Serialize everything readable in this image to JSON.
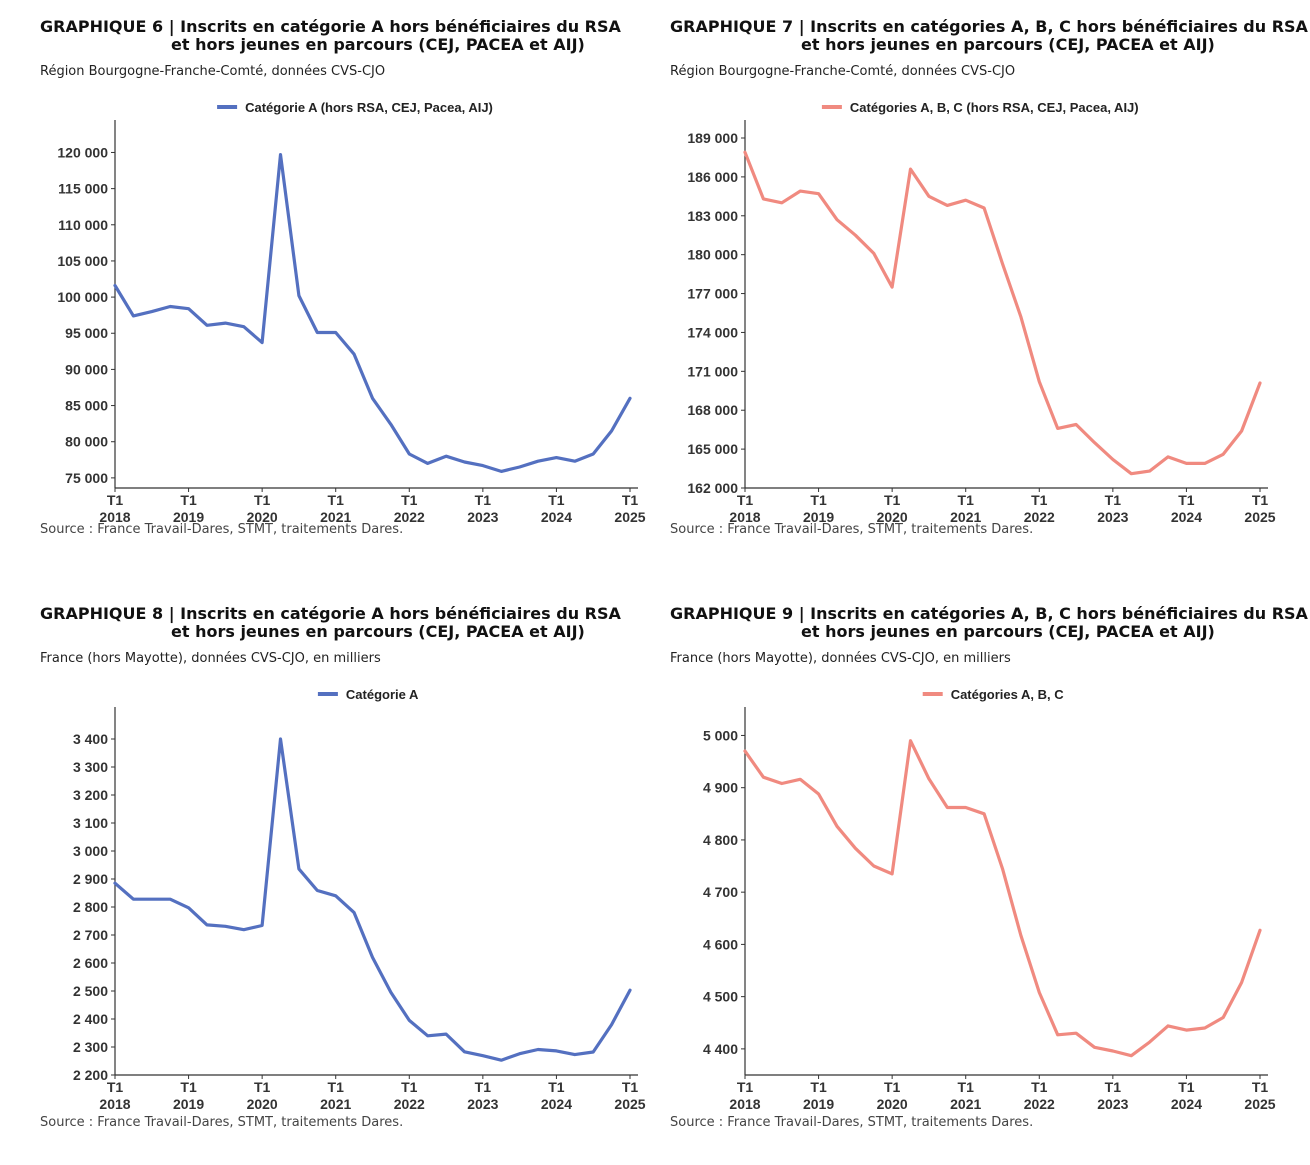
{
  "charts": [
    {
      "id": "g6",
      "title_line1": "GRAPHIQUE 6 | Inscrits en catégorie A hors bénéficiaires du RSA",
      "title_line2": "et hors jeunes en parcours (CEJ, PACEA et AIJ)",
      "subtitle": "Région Bourgogne-Franche-Comté, données CVS-CJO",
      "source": "Source : France Travail-Dares, STMT, traitements Dares.",
      "legend": "Catégorie A (hors RSA, CEJ, Pacea, AIJ)",
      "color": "#5470c0"
    },
    {
      "id": "g7",
      "title_line1": "GRAPHIQUE 7 | Inscrits en catégories A, B, C hors bénéficiaires du RSA",
      "title_line2": "et hors jeunes en parcours (CEJ, PACEA et AIJ)",
      "subtitle": "Région Bourgogne-Franche-Comté, données CVS-CJO",
      "source": "Source : France Travail-Dares, STMT, traitements Dares.",
      "legend": "Catégories A, B, C (hors RSA, CEJ, Pacea, AIJ)",
      "color": "#f08a80"
    },
    {
      "id": "g8",
      "title_line1": "GRAPHIQUE 8 | Inscrits en catégorie A hors bénéficiaires du RSA",
      "title_line2": "et hors jeunes en parcours (CEJ, PACEA et AIJ)",
      "subtitle": "France (hors Mayotte), données CVS-CJO, en milliers",
      "source": "Source : France Travail-Dares, STMT, traitements Dares.",
      "legend": "Catégorie A",
      "color": "#5470c0"
    },
    {
      "id": "g9",
      "title_line1": "GRAPHIQUE 9 | Inscrits en catégories A, B, C hors bénéficiaires du RSA",
      "title_line2": "et hors jeunes en parcours (CEJ, PACEA et AIJ)",
      "subtitle": "France (hors Mayotte), données CVS-CJO, en milliers",
      "source": "Source : France Travail-Dares, STMT, traitements Dares.",
      "legend": "Catégories A, B, C",
      "color": "#f08a80"
    }
  ],
  "chart_data": [
    {
      "type": "line",
      "x_tick_labels": [
        "T1\n2018",
        "T1\n2019",
        "T1\n2020",
        "T1\n2021",
        "T1\n2022",
        "T1\n2023",
        "T1\n2024",
        "T1\n2025"
      ],
      "x": [
        "2018-T1",
        "2018-T2",
        "2018-T3",
        "2018-T4",
        "2019-T1",
        "2019-T2",
        "2019-T3",
        "2019-T4",
        "2020-T1",
        "2020-T2",
        "2020-T3",
        "2020-T4",
        "2021-T1",
        "2021-T2",
        "2021-T3",
        "2021-T4",
        "2022-T1",
        "2022-T2",
        "2022-T3",
        "2022-T4",
        "2023-T1",
        "2023-T2",
        "2023-T3",
        "2023-T4",
        "2024-T1",
        "2024-T2",
        "2024-T3",
        "2024-T4",
        "2025-T1"
      ],
      "series": [
        {
          "name": "Catégorie A (hors RSA, CEJ, Pacea, AIJ)",
          "values": [
            101600,
            97400,
            98000,
            98700,
            98400,
            96100,
            96400,
            95900,
            93700,
            119700,
            100200,
            95100,
            95100,
            92100,
            86000,
            82400,
            78300,
            77000,
            78000,
            77200,
            76700,
            75900,
            76500,
            77300,
            77800,
            77300,
            78300,
            81500,
            86000
          ]
        }
      ],
      "yticks": [
        75000,
        80000,
        85000,
        90000,
        95000,
        100000,
        105000,
        110000,
        115000,
        120000
      ],
      "ytick_labels": [
        "75 000",
        "80 000",
        "85 000",
        "90 000",
        "95 000",
        "100 000",
        "105 000",
        "110 000",
        "115 000",
        "120 000"
      ],
      "ylim": [
        73600,
        122000
      ]
    },
    {
      "type": "line",
      "x_tick_labels": [
        "T1\n2018",
        "T1\n2019",
        "T1\n2020",
        "T1\n2021",
        "T1\n2022",
        "T1\n2023",
        "T1\n2024",
        "T1\n2025"
      ],
      "x": [
        "2018-T1",
        "2018-T2",
        "2018-T3",
        "2018-T4",
        "2019-T1",
        "2019-T2",
        "2019-T3",
        "2019-T4",
        "2020-T1",
        "2020-T2",
        "2020-T3",
        "2020-T4",
        "2021-T1",
        "2021-T2",
        "2021-T3",
        "2021-T4",
        "2022-T1",
        "2022-T2",
        "2022-T3",
        "2022-T4",
        "2023-T1",
        "2023-T2",
        "2023-T3",
        "2023-T4",
        "2024-T1",
        "2024-T2",
        "2024-T3",
        "2024-T4",
        "2025-T1"
      ],
      "series": [
        {
          "name": "Catégories A, B, C (hors RSA, CEJ, Pacea, AIJ)",
          "values": [
            187900,
            184300,
            184000,
            184900,
            184700,
            182700,
            181500,
            180100,
            177500,
            186600,
            184500,
            183800,
            184200,
            183600,
            179300,
            175200,
            170200,
            166600,
            166900,
            165500,
            164200,
            163100,
            163300,
            164400,
            163900,
            163900,
            164600,
            166400,
            170100
          ]
        }
      ],
      "yticks": [
        162000,
        165000,
        168000,
        171000,
        174000,
        177000,
        180000,
        183000,
        186000,
        189000
      ],
      "ytick_labels": [
        "162 000",
        "165 000",
        "168 000",
        "171 000",
        "174 000",
        "177 000",
        "180 000",
        "183 000",
        "186 000",
        "189 000"
      ],
      "ylim": [
        162000,
        189000
      ]
    },
    {
      "type": "line",
      "x_tick_labels": [
        "T1\n2018",
        "T1\n2019",
        "T1\n2020",
        "T1\n2021",
        "T1\n2022",
        "T1\n2023",
        "T1\n2024",
        "T1\n2025"
      ],
      "x": [
        "2018-T1",
        "2018-T2",
        "2018-T3",
        "2018-T4",
        "2019-T1",
        "2019-T2",
        "2019-T3",
        "2019-T4",
        "2020-T1",
        "2020-T2",
        "2020-T3",
        "2020-T4",
        "2021-T1",
        "2021-T2",
        "2021-T3",
        "2021-T4",
        "2022-T1",
        "2022-T2",
        "2022-T3",
        "2022-T4",
        "2023-T1",
        "2023-T2",
        "2023-T3",
        "2023-T4",
        "2024-T1",
        "2024-T2",
        "2024-T3",
        "2024-T4",
        "2025-T1"
      ],
      "series": [
        {
          "name": "Catégorie A",
          "values": [
            2885,
            2828,
            2828,
            2828,
            2797,
            2736,
            2731,
            2719,
            2734,
            3400,
            2936,
            2859,
            2840,
            2780,
            2620,
            2495,
            2395,
            2340,
            2346,
            2283,
            2269,
            2253,
            2276,
            2291,
            2286,
            2273,
            2282,
            2380,
            2503
          ]
        }
      ],
      "yticks": [
        2200,
        2300,
        2400,
        2500,
        2600,
        2700,
        2800,
        2900,
        3000,
        3100,
        3200,
        3300,
        3400
      ],
      "ytick_labels": [
        "2 200",
        "2 300",
        "2 400",
        "2 500",
        "2 600",
        "2 700",
        "2 800",
        "2 900",
        "3 000",
        "3 100",
        "3 200",
        "3 300",
        "3 400"
      ],
      "ylim": [
        2200,
        3450
      ]
    },
    {
      "type": "line",
      "x_tick_labels": [
        "T1\n2018",
        "T1\n2019",
        "T1\n2020",
        "T1\n2021",
        "T1\n2022",
        "T1\n2023",
        "T1\n2024",
        "T1\n2025"
      ],
      "x": [
        "2018-T1",
        "2018-T2",
        "2018-T3",
        "2018-T4",
        "2019-T1",
        "2019-T2",
        "2019-T3",
        "2019-T4",
        "2020-T1",
        "2020-T2",
        "2020-T3",
        "2020-T4",
        "2021-T1",
        "2021-T2",
        "2021-T3",
        "2021-T4",
        "2022-T1",
        "2022-T2",
        "2022-T3",
        "2022-T4",
        "2023-T1",
        "2023-T2",
        "2023-T3",
        "2023-T4",
        "2024-T1",
        "2024-T2",
        "2024-T3",
        "2024-T4",
        "2025-T1"
      ],
      "series": [
        {
          "name": "Catégories A, B, C",
          "values": [
            4970,
            4920,
            4908,
            4916,
            4888,
            4826,
            4784,
            4750,
            4735,
            4990,
            4917,
            4862,
            4862,
            4850,
            4745,
            4617,
            4508,
            4427,
            4430,
            4403,
            4396,
            4387,
            4413,
            4444,
            4436,
            4440,
            4460,
            4527,
            4627
          ]
        }
      ],
      "yticks": [
        4400,
        4500,
        4600,
        4700,
        4800,
        4900,
        5000
      ],
      "ytick_labels": [
        "4 400",
        "4 500",
        "4 600",
        "4 700",
        "4 800",
        "4 900",
        "5 000"
      ],
      "ylim": [
        4350,
        5020
      ]
    }
  ]
}
